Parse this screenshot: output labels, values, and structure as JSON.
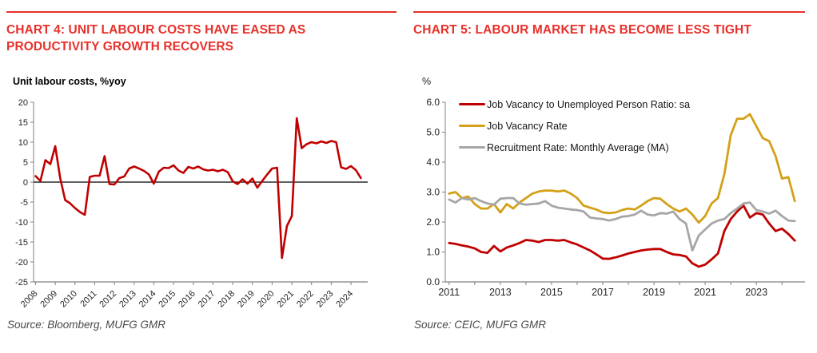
{
  "page": {
    "title_red": "#e8302a",
    "axis_color": "#808080",
    "tick_text_color": "#262626"
  },
  "chart_data": [
    {
      "type": "line",
      "title": "CHART 4: UNIT LABOUR COSTS HAVE EASED AS PRODUCTIVITY GROWTH RECOVERS",
      "axis_title": "Unit labour costs, %yoy",
      "source": "Source: Bloomberg, MUFG GMR",
      "ylim": [
        -25,
        20
      ],
      "xlim": [
        2007.9,
        2024.85
      ],
      "grid": false,
      "zero_line": true,
      "legend": "none",
      "y_ticks": [
        "20",
        "15",
        "10",
        "5",
        "0",
        "-5",
        "-10",
        "-15",
        "-20",
        "-25"
      ],
      "x_ticks": [
        {
          "year": 2008,
          "label": "2008"
        },
        {
          "year": 2009,
          "label": "2009"
        },
        {
          "year": 2010,
          "label": "2010"
        },
        {
          "year": 2011,
          "label": "2011"
        },
        {
          "year": 2012,
          "label": "2012"
        },
        {
          "year": 2013,
          "label": "2013"
        },
        {
          "year": 2014,
          "label": "2014"
        },
        {
          "year": 2015,
          "label": "2015"
        },
        {
          "year": 2016,
          "label": "2016"
        },
        {
          "year": 2017,
          "label": "2017"
        },
        {
          "year": 2018,
          "label": "2018"
        },
        {
          "year": 2019,
          "label": "2019"
        },
        {
          "year": 2020,
          "label": "2020"
        },
        {
          "year": 2021,
          "label": "2021"
        },
        {
          "year": 2022,
          "label": "2022"
        },
        {
          "year": 2023,
          "label": "2023"
        },
        {
          "year": 2024,
          "label": "2024"
        }
      ],
      "series": [
        {
          "name": "Unit labour costs, %yoy",
          "color": "#c00000",
          "x_start": 2008.0,
          "x_step": 0.25,
          "values": [
            1.5,
            0.3,
            5.5,
            4.5,
            9.0,
            1.0,
            -4.5,
            -5.3,
            -6.5,
            -7.5,
            -8.2,
            1.3,
            1.6,
            1.6,
            6.5,
            -0.5,
            -0.6,
            1.0,
            1.4,
            3.4,
            3.9,
            3.4,
            2.8,
            1.9,
            -0.4,
            2.6,
            3.6,
            3.5,
            4.2,
            2.9,
            2.3,
            3.8,
            3.4,
            3.9,
            3.2,
            2.9,
            3.1,
            2.7,
            3.1,
            2.5,
            0.2,
            -0.5,
            0.7,
            -0.4,
            0.9,
            -1.4,
            0.3,
            1.9,
            3.4,
            3.6,
            -19.0,
            -11.0,
            -8.5,
            16.0,
            8.5,
            9.5,
            10.0,
            9.7,
            10.2,
            9.8,
            10.3,
            10.0,
            3.7,
            3.3,
            4.0,
            3.0,
            1.0
          ]
        }
      ]
    },
    {
      "type": "line",
      "title": "CHART 5: LABOUR MARKET HAS BECOME LESS TIGHT",
      "axis_title": "%",
      "source": "Source: CEIC, MUFG GMR",
      "ylim": [
        0,
        6
      ],
      "xlim": [
        2010.85,
        2024.9
      ],
      "grid": false,
      "zero_line": false,
      "legend": "top-left-inside",
      "y_ticks": [
        "6.0",
        "5.0",
        "4.0",
        "3.0",
        "2.0",
        "1.0",
        "0.0"
      ],
      "x_ticks": [
        {
          "year": 2011,
          "label": "2011"
        },
        {
          "year": 2012,
          "label": ""
        },
        {
          "year": 2013,
          "label": "2013"
        },
        {
          "year": 2014,
          "label": ""
        },
        {
          "year": 2015,
          "label": "2015"
        },
        {
          "year": 2016,
          "label": ""
        },
        {
          "year": 2017,
          "label": "2017"
        },
        {
          "year": 2018,
          "label": ""
        },
        {
          "year": 2019,
          "label": "2019"
        },
        {
          "year": 2020,
          "label": ""
        },
        {
          "year": 2021,
          "label": "2021"
        },
        {
          "year": 2022,
          "label": ""
        },
        {
          "year": 2023,
          "label": "2023"
        },
        {
          "year": 2024,
          "label": ""
        }
      ],
      "series": [
        {
          "name": "Job Vacancy to Unemployed Person Ratio: sa",
          "color": "#c00000",
          "x_start": 2011.0,
          "x_step": 0.25,
          "values": [
            1.3,
            1.27,
            1.22,
            1.18,
            1.12,
            1.0,
            0.97,
            1.2,
            1.02,
            1.15,
            1.22,
            1.3,
            1.4,
            1.38,
            1.33,
            1.4,
            1.4,
            1.38,
            1.4,
            1.32,
            1.25,
            1.15,
            1.05,
            0.92,
            0.78,
            0.77,
            0.82,
            0.88,
            0.95,
            1.0,
            1.05,
            1.08,
            1.1,
            1.1,
            1.0,
            0.92,
            0.9,
            0.85,
            0.62,
            0.51,
            0.58,
            0.75,
            0.95,
            1.7,
            2.1,
            2.35,
            2.55,
            2.15,
            2.3,
            2.25,
            1.95,
            1.7,
            1.78,
            1.6,
            1.38
          ]
        },
        {
          "name": "Job Vacancy Rate",
          "color": "#d4a017",
          "x_start": 2011.0,
          "x_step": 0.25,
          "values": [
            2.95,
            3.0,
            2.8,
            2.85,
            2.6,
            2.45,
            2.45,
            2.6,
            2.32,
            2.6,
            2.45,
            2.65,
            2.8,
            2.95,
            3.02,
            3.05,
            3.05,
            3.02,
            3.05,
            2.95,
            2.8,
            2.55,
            2.48,
            2.42,
            2.32,
            2.3,
            2.32,
            2.4,
            2.45,
            2.42,
            2.55,
            2.7,
            2.8,
            2.78,
            2.6,
            2.45,
            2.35,
            2.45,
            2.25,
            1.98,
            2.2,
            2.62,
            2.8,
            3.6,
            4.9,
            5.45,
            5.45,
            5.6,
            5.2,
            4.8,
            4.7,
            4.2,
            3.45,
            3.5,
            2.7
          ]
        },
        {
          "name": "Recruitment Rate: Monthly Average (MA)",
          "color": "#a6a6a6",
          "x_start": 2011.0,
          "x_step": 0.25,
          "values": [
            2.75,
            2.65,
            2.8,
            2.75,
            2.8,
            2.7,
            2.62,
            2.58,
            2.78,
            2.8,
            2.8,
            2.62,
            2.58,
            2.6,
            2.62,
            2.7,
            2.55,
            2.48,
            2.45,
            2.42,
            2.4,
            2.35,
            2.15,
            2.12,
            2.1,
            2.05,
            2.1,
            2.18,
            2.2,
            2.25,
            2.38,
            2.25,
            2.22,
            2.3,
            2.28,
            2.35,
            2.1,
            1.95,
            1.05,
            1.55,
            1.75,
            1.95,
            2.05,
            2.1,
            2.3,
            2.45,
            2.62,
            2.65,
            2.4,
            2.35,
            2.28,
            2.38,
            2.2,
            2.05,
            2.03
          ]
        }
      ]
    }
  ]
}
